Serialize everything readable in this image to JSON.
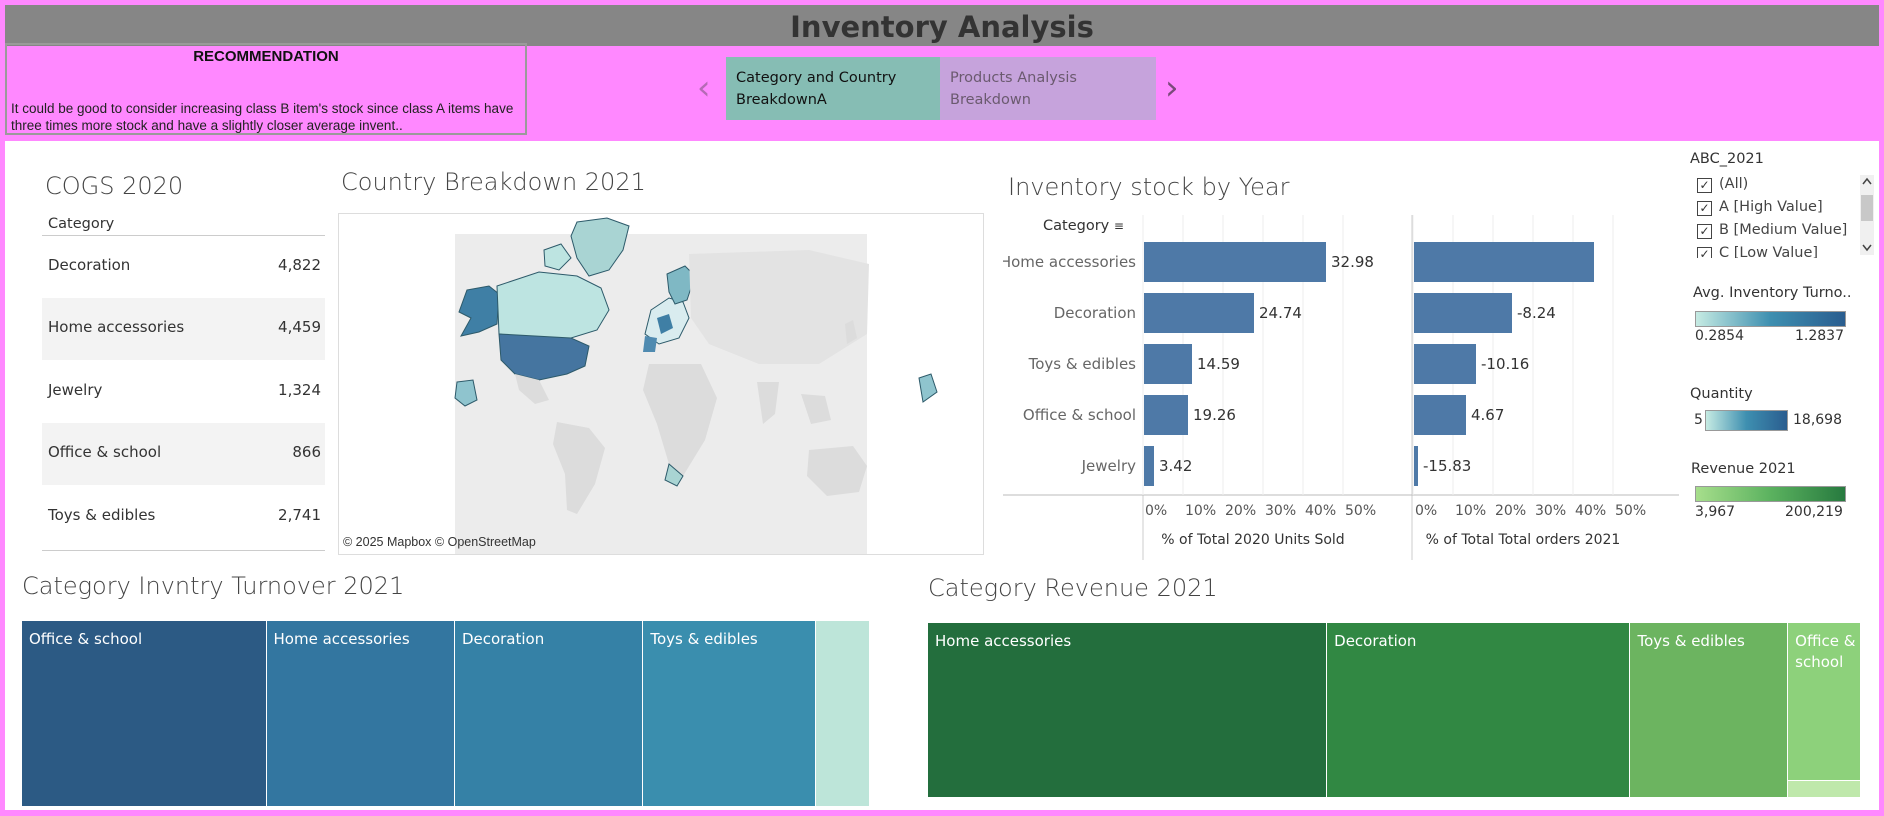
{
  "header": {
    "title": "Inventory Analysis"
  },
  "recommendation": {
    "title": "RECOMMENDATION",
    "text": "It could be good to consider increasing class B item's stock since class A items have three times more stock and have a slightly closer average invent.."
  },
  "nav": {
    "prev_icon": "chevron-left-icon",
    "next_icon": "chevron-right-icon",
    "tabs": [
      {
        "label": "Category and Country BreakdownA",
        "active": true,
        "color": "#86bdb4"
      },
      {
        "label": "Products Analysis Breakdown",
        "active": false,
        "color": "#c6a3dc"
      }
    ]
  },
  "cogs": {
    "title": "COGS 2020",
    "column_header": "Category",
    "rows": [
      {
        "category": "Decoration",
        "value": "4,822"
      },
      {
        "category": "Home accessories",
        "value": "4,459"
      },
      {
        "category": "Jewelry",
        "value": "1,324"
      },
      {
        "category": "Office & school",
        "value": "866"
      },
      {
        "category": "Toys & edibles",
        "value": "2,741"
      }
    ]
  },
  "country": {
    "title": "Country Breakdown 2021",
    "credit": "© 2025 Mapbox © OpenStreetMap"
  },
  "inventory_chart": {
    "title": "Inventory stock by Year",
    "category_header": "Category",
    "sort_icon": "sort-icon"
  },
  "chart_data": [
    {
      "type": "bar",
      "title": "Inventory stock by Year",
      "orientation": "horizontal",
      "categories": [
        "Home accessories",
        "Decoration",
        "Toys & edibles",
        "Office & school",
        "Jewelry"
      ],
      "series": [
        {
          "name": "% of Total 2020 Units Sold",
          "values": [
            45.5,
            27.5,
            12.0,
            11.0,
            2.5
          ],
          "labels": [
            "32.98",
            "24.74",
            "14.59",
            "19.26",
            "3.42"
          ]
        },
        {
          "name": "% of Total Total orders 2021",
          "values": [
            45.0,
            24.5,
            15.5,
            13.0,
            1.0
          ],
          "labels": [
            "",
            "-8.24",
            "-10.16",
            "4.67",
            "-15.83"
          ]
        }
      ],
      "xticks": [
        "0%",
        "10%",
        "20%",
        "30%",
        "40%",
        "50%"
      ],
      "xlim": [
        0,
        55
      ],
      "color": "#4e79a7"
    },
    {
      "type": "treemap",
      "title": "Category Invntry Turnover 2021",
      "categories": [
        "Office & school",
        "Home accessories",
        "Decoration",
        "Toys & edibles",
        ""
      ],
      "values": [
        205,
        158,
        158,
        145,
        45
      ],
      "colors": [
        "#2c5a84",
        "#3376a0",
        "#3581a6",
        "#3a8eae",
        "#bde5d9"
      ]
    },
    {
      "type": "treemap",
      "title": "Category Revenue 2021",
      "categories": [
        "Home accessories",
        "Decoration",
        "Toys & edibles",
        "Office & school",
        ""
      ],
      "values": [
        400,
        304,
        158,
        72,
        1
      ],
      "colors": [
        "#236e3d",
        "#318843",
        "#6cb460",
        "#8dd17b",
        "#bfe8ab"
      ]
    }
  ],
  "legends": {
    "abc": {
      "title": "ABC_2021",
      "items": [
        {
          "label": "(All)",
          "checked": true
        },
        {
          "label": "A [High Value]",
          "checked": true
        },
        {
          "label": "B [Medium Value]",
          "checked": true
        },
        {
          "label": "C [Low Value]",
          "checked": true
        }
      ]
    },
    "avg_turnover": {
      "title": "Avg. Inventory Turno..",
      "min": "0.2854",
      "max": "1.2837"
    },
    "quantity": {
      "title": "Quantity",
      "min": "5",
      "max": "18,698"
    },
    "revenue": {
      "title": "Revenue 2021",
      "min": "3,967",
      "max": "200,219"
    }
  }
}
